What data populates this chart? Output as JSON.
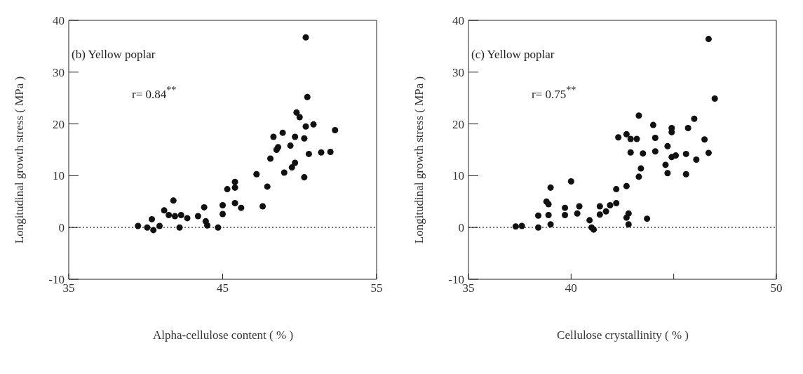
{
  "chart_data": [
    {
      "type": "scatter",
      "xlabel": "Alpha-cellulose content ( % )",
      "ylabel": "Longitudinal growth stress ( MPa )",
      "annotations": [
        "(b) Yellow poplar",
        "r= 0.84$^{**}$"
      ],
      "x": [
        39.5,
        40.1,
        40.4,
        40.5,
        40.9,
        41.2,
        41.5,
        41.8,
        41.9,
        42.2,
        42.3,
        42.7,
        43.4,
        43.8,
        43.9,
        44.0,
        44.7,
        45.0,
        45.0,
        45.3,
        45.8,
        45.8,
        45.8,
        46.2,
        47.2,
        47.6,
        47.9,
        48.1,
        48.3,
        48.5,
        48.6,
        48.9,
        49.0,
        49.4,
        49.5,
        49.7,
        49.7,
        49.8,
        50.0,
        50.3,
        50.3,
        50.4,
        50.4,
        50.5,
        50.6,
        50.9,
        51.4,
        52.0,
        52.3
      ],
      "values": [
        0.3,
        0,
        1.6,
        -0.5,
        0.3,
        3.3,
        2.4,
        5.2,
        2.2,
        0,
        2.4,
        1.8,
        2.2,
        3.9,
        1.2,
        0.4,
        0,
        2.6,
        4.3,
        7.4,
        8.8,
        7.7,
        4.7,
        3.8,
        10.3,
        4.1,
        7.9,
        13.3,
        17.5,
        15.0,
        15.5,
        18.3,
        10.6,
        15.8,
        11.6,
        12.5,
        17.5,
        22.2,
        21.3,
        17.2,
        9.7,
        36.7,
        19.5,
        25.2,
        14.2,
        19.9,
        14.5,
        14.6,
        18.8
      ],
      "color": "#111111",
      "marker": "circle",
      "xlim": [
        35,
        55
      ],
      "xticks": [
        35,
        45,
        55
      ],
      "ylim": [
        -10,
        40
      ],
      "yticks": [
        -10,
        0,
        10,
        20,
        30,
        40
      ],
      "ref_lines": [
        {
          "axis": "y",
          "value": 0,
          "line_style": "dotted"
        }
      ]
    },
    {
      "type": "scatter",
      "xlabel": "Cellulose crystallinity ( % )",
      "ylabel": "Longitudinal growth stress ( MPa )",
      "annotations": [
        "(c) Yellow poplar",
        "r= 0.75$^{**}$"
      ],
      "x": [
        37.3,
        37.6,
        38.4,
        38.4,
        38.8,
        38.9,
        38.9,
        39.0,
        39.0,
        39.7,
        39.7,
        40.0,
        46.7,
        47.0,
        43.3,
        46.0,
        44.0,
        44.9,
        44.9,
        45.7,
        42.3,
        42.7,
        42.9,
        43.2,
        44.1,
        46.5,
        42.9,
        43.5,
        44.1,
        44.7,
        44.9,
        45.1,
        45.6,
        46.7,
        46.1,
        44.6,
        43.4,
        43.3,
        44.7,
        45.6,
        42.7,
        42.2,
        42.2,
        41.9,
        41.4,
        40.4,
        40.3,
        41.7,
        41.4,
        42.8,
        43.7,
        40.9,
        42.7,
        41.0,
        41.1,
        42.8
      ],
      "values": [
        0.2,
        0.3,
        0,
        2.3,
        5.0,
        4.5,
        2.4,
        7.7,
        0.6,
        3.8,
        2.4,
        8.9,
        36.4,
        24.9,
        21.6,
        21.0,
        19.8,
        19.2,
        18.4,
        19.2,
        17.4,
        18.0,
        17.1,
        17.1,
        17.3,
        17.0,
        14.5,
        14.3,
        14.7,
        15.7,
        13.6,
        13.9,
        14.2,
        14.4,
        13.1,
        12.1,
        11.4,
        9.8,
        10.5,
        10.3,
        8.0,
        7.4,
        4.7,
        4.3,
        4.1,
        4.1,
        2.7,
        3.1,
        2.5,
        2.7,
        1.7,
        1.4,
        1.9,
        0,
        -0.4,
        0.6
      ],
      "color": "#111111",
      "marker": "circle",
      "xlim": [
        35,
        50
      ],
      "xticks": [
        35,
        40,
        {
          "value": 45,
          "label": null
        },
        50
      ],
      "ylim": [
        -10,
        40
      ],
      "yticks": [
        -10,
        0,
        10,
        20,
        30,
        40
      ],
      "ref_lines": [
        {
          "axis": "y",
          "value": 0,
          "line_style": "dotted"
        }
      ]
    }
  ]
}
